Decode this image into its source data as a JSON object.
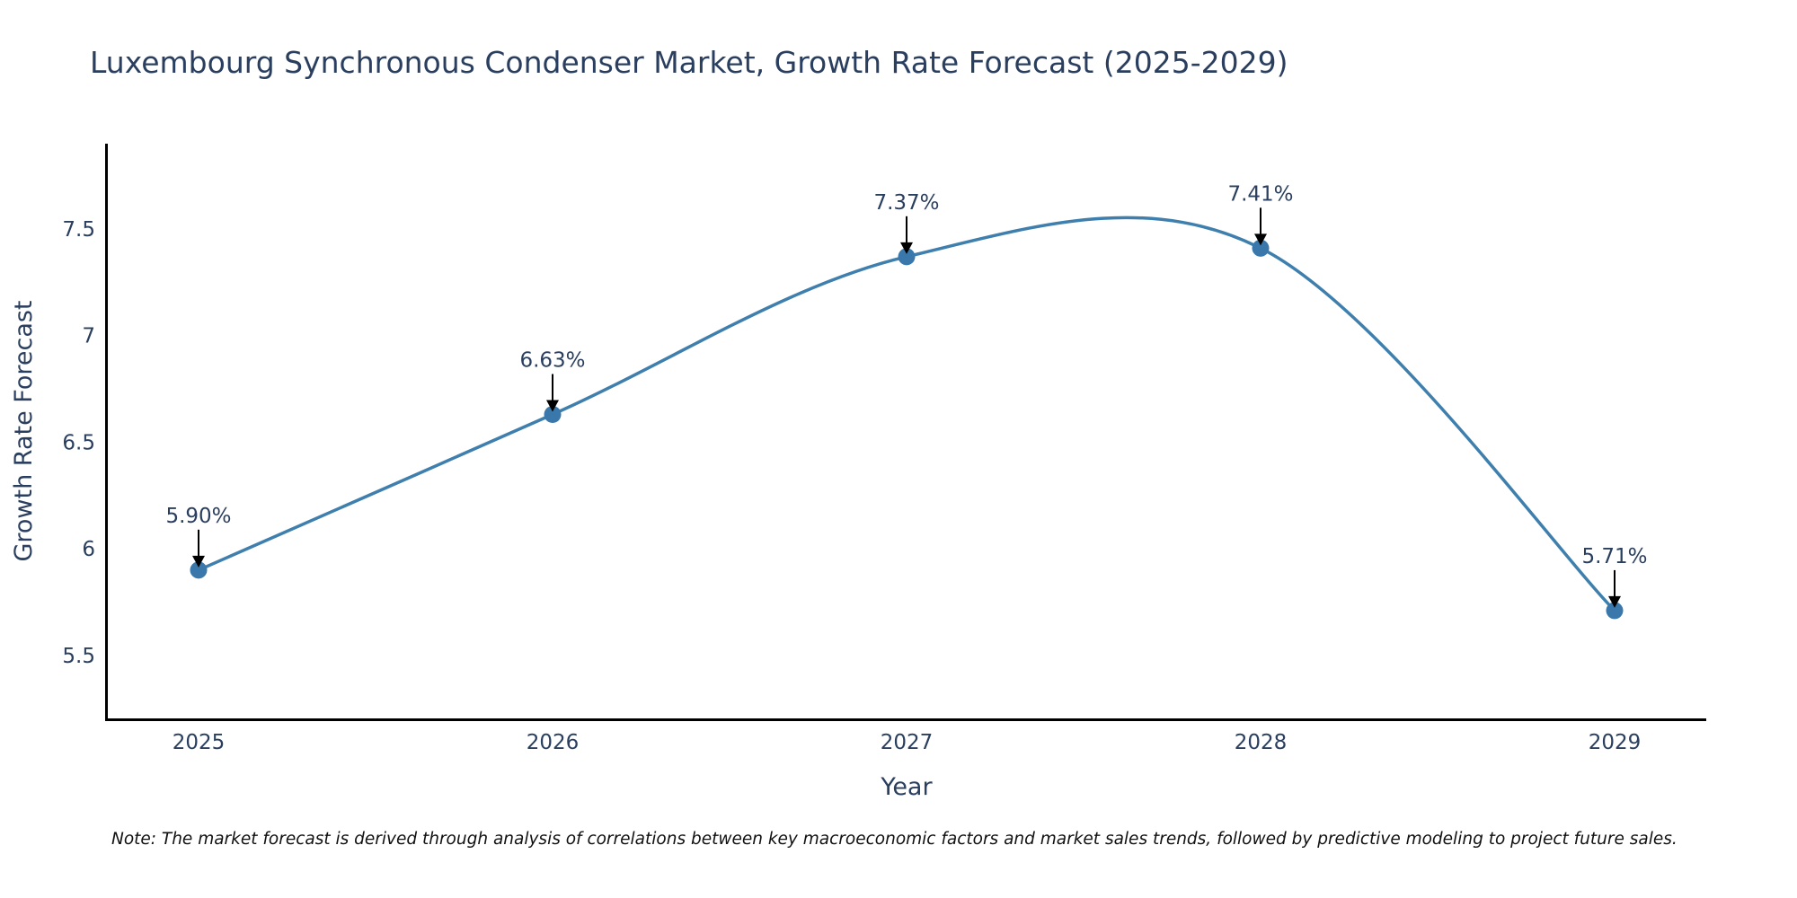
{
  "chart_data": {
    "type": "line",
    "title": "Luxembourg Synchronous Condenser Market, Growth Rate Forecast (2025-2029)",
    "xlabel": "Year",
    "ylabel": "Growth Rate Forecast",
    "categories": [
      "2025",
      "2026",
      "2027",
      "2028",
      "2029"
    ],
    "values": [
      5.9,
      6.63,
      7.37,
      7.41,
      5.71
    ],
    "data_labels": [
      "5.90%",
      "6.63%",
      "7.37%",
      "7.41%",
      "5.71%"
    ],
    "yticks": [
      5.5,
      6,
      6.5,
      7,
      7.5
    ],
    "ytick_labels": [
      "5.5",
      "6",
      "6.5",
      "7",
      "7.5"
    ],
    "ylim": [
      5.2,
      7.9
    ],
    "line_shape": "spline",
    "grid": false,
    "line_color": "#3f7fad",
    "marker_color": "#3a78ab",
    "note": "Note: The market forecast is derived through analysis of correlations between key macroeconomic factors and market sales trends, followed by predictive modeling to project future sales."
  }
}
